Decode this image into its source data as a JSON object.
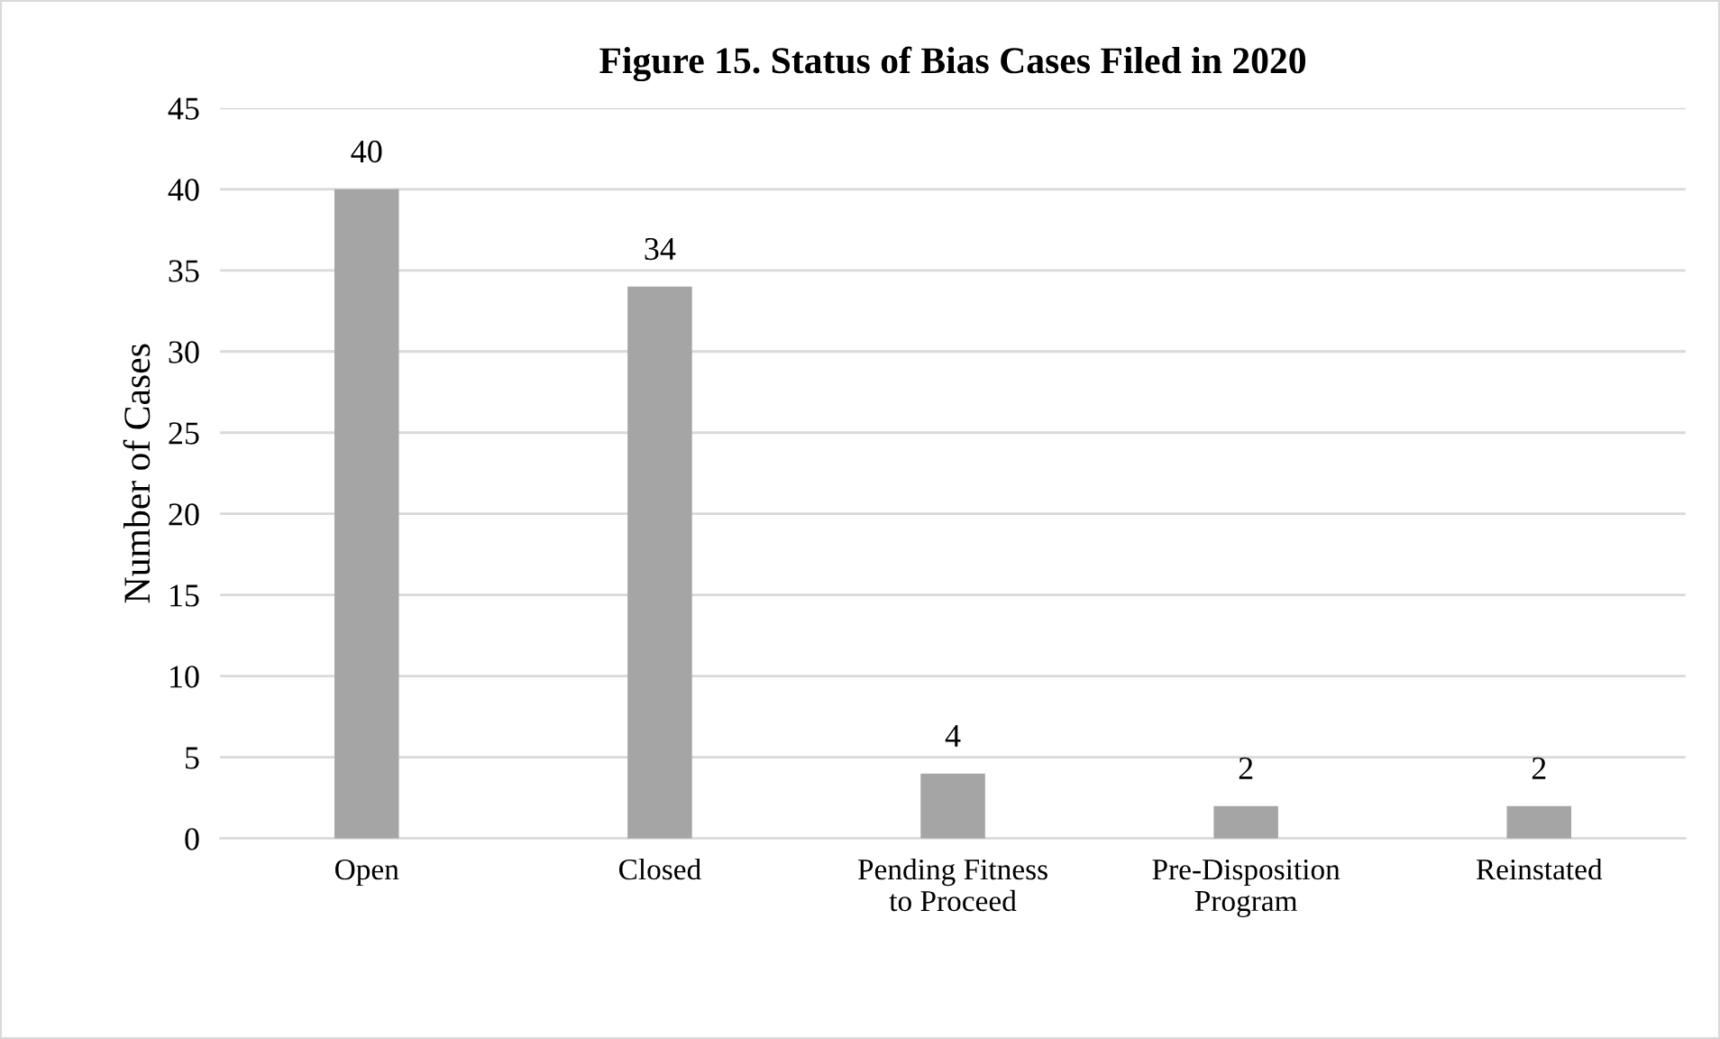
{
  "chart_data": {
    "type": "bar",
    "title": "Figure 15. Status of Bias Cases Filed in 2020",
    "ylabel": "Number of Cases",
    "categories": [
      "Open",
      "Closed",
      "Pending Fitness\nto Proceed",
      "Pre-Disposition\nProgram",
      "Reinstated"
    ],
    "values": [
      40,
      34,
      4,
      2,
      2
    ],
    "color": "#a5a5a5",
    "ylim": [
      0,
      45
    ],
    "yticks": [
      0,
      5,
      10,
      15,
      20,
      25,
      30,
      35,
      40,
      45
    ],
    "grid": "y",
    "data_labels": true,
    "legend": false
  }
}
